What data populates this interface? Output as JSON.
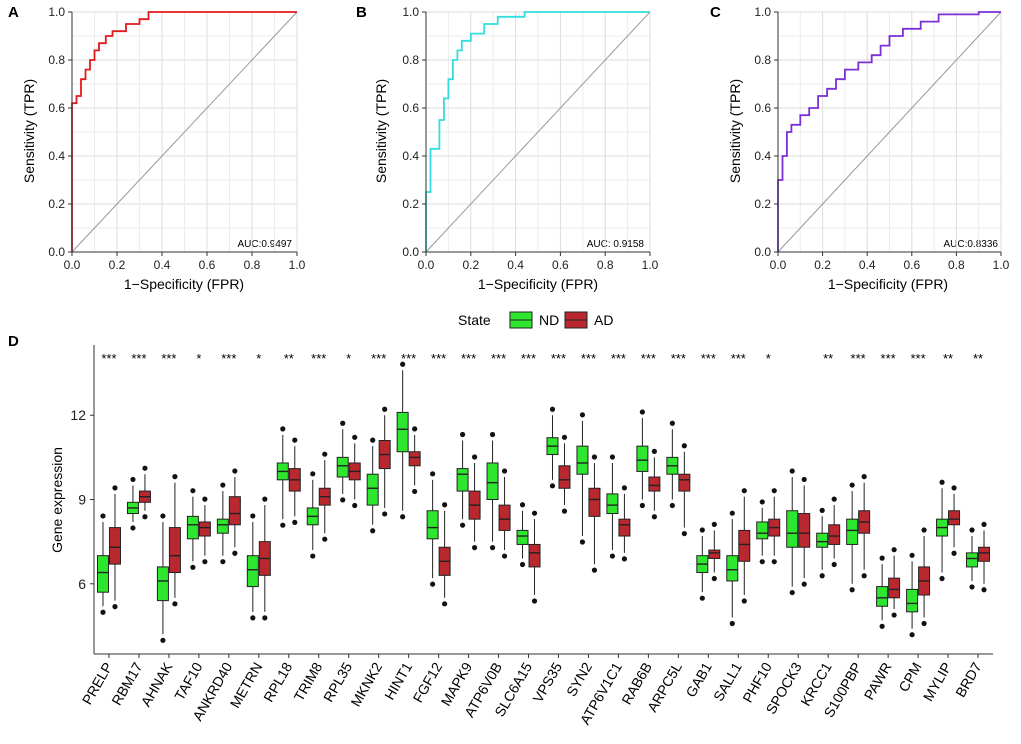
{
  "chart_data": [
    {
      "panel": "A",
      "type": "line",
      "subtype": "roc",
      "xlabel": "1−Specificity (FPR)",
      "ylabel": "Sensitivity (TPR)",
      "xlim": [
        0,
        1
      ],
      "ylim": [
        0,
        1
      ],
      "xticks": [
        "0.0",
        "0.2",
        "0.4",
        "0.6",
        "0.8",
        "1.0"
      ],
      "yticks": [
        "0.0",
        "0.2",
        "0.4",
        "0.6",
        "0.8",
        "1.0"
      ],
      "auc_label": "AUC:0.9497",
      "color": "#e31a1c",
      "points": [
        [
          0,
          0
        ],
        [
          0,
          0.62
        ],
        [
          0.02,
          0.62
        ],
        [
          0.02,
          0.65
        ],
        [
          0.04,
          0.65
        ],
        [
          0.04,
          0.72
        ],
        [
          0.06,
          0.72
        ],
        [
          0.06,
          0.76
        ],
        [
          0.08,
          0.76
        ],
        [
          0.08,
          0.8
        ],
        [
          0.1,
          0.8
        ],
        [
          0.1,
          0.84
        ],
        [
          0.12,
          0.84
        ],
        [
          0.12,
          0.87
        ],
        [
          0.15,
          0.87
        ],
        [
          0.15,
          0.9
        ],
        [
          0.18,
          0.9
        ],
        [
          0.18,
          0.92
        ],
        [
          0.24,
          0.92
        ],
        [
          0.24,
          0.95
        ],
        [
          0.3,
          0.95
        ],
        [
          0.3,
          0.97
        ],
        [
          0.34,
          0.97
        ],
        [
          0.34,
          1.0
        ],
        [
          1.0,
          1.0
        ]
      ]
    },
    {
      "panel": "B",
      "type": "line",
      "subtype": "roc",
      "xlabel": "1−Specificity (FPR)",
      "ylabel": "Sensitivity (TPR)",
      "xlim": [
        0,
        1
      ],
      "ylim": [
        0,
        1
      ],
      "xticks": [
        "0.0",
        "0.2",
        "0.4",
        "0.6",
        "0.8",
        "1.0"
      ],
      "yticks": [
        "0.0",
        "0.2",
        "0.4",
        "0.6",
        "0.8",
        "1.0"
      ],
      "auc_label": "AUC: 0.9158",
      "color": "#33dddd",
      "points": [
        [
          0,
          0
        ],
        [
          0,
          0.25
        ],
        [
          0.02,
          0.25
        ],
        [
          0.02,
          0.43
        ],
        [
          0.06,
          0.43
        ],
        [
          0.06,
          0.55
        ],
        [
          0.08,
          0.55
        ],
        [
          0.08,
          0.64
        ],
        [
          0.1,
          0.64
        ],
        [
          0.1,
          0.72
        ],
        [
          0.12,
          0.72
        ],
        [
          0.12,
          0.8
        ],
        [
          0.14,
          0.8
        ],
        [
          0.14,
          0.84
        ],
        [
          0.16,
          0.84
        ],
        [
          0.16,
          0.88
        ],
        [
          0.2,
          0.88
        ],
        [
          0.2,
          0.91
        ],
        [
          0.26,
          0.91
        ],
        [
          0.26,
          0.95
        ],
        [
          0.32,
          0.95
        ],
        [
          0.32,
          0.98
        ],
        [
          0.44,
          0.98
        ],
        [
          0.44,
          1.0
        ],
        [
          1.0,
          1.0
        ]
      ]
    },
    {
      "panel": "C",
      "type": "line",
      "subtype": "roc",
      "xlabel": "1−Specificity (FPR)",
      "ylabel": "Sensitivity (TPR)",
      "xlim": [
        0,
        1
      ],
      "ylim": [
        0,
        1
      ],
      "xticks": [
        "0.0",
        "0.2",
        "0.4",
        "0.6",
        "0.8",
        "1.0"
      ],
      "yticks": [
        "0.0",
        "0.2",
        "0.4",
        "0.6",
        "0.8",
        "1.0"
      ],
      "auc_label": "AUC:0.8336",
      "color": "#7b2fd6",
      "points": [
        [
          0,
          0
        ],
        [
          0,
          0.3
        ],
        [
          0.02,
          0.3
        ],
        [
          0.02,
          0.4
        ],
        [
          0.04,
          0.4
        ],
        [
          0.04,
          0.5
        ],
        [
          0.06,
          0.5
        ],
        [
          0.06,
          0.53
        ],
        [
          0.1,
          0.53
        ],
        [
          0.1,
          0.57
        ],
        [
          0.14,
          0.57
        ],
        [
          0.14,
          0.6
        ],
        [
          0.18,
          0.6
        ],
        [
          0.18,
          0.65
        ],
        [
          0.22,
          0.65
        ],
        [
          0.22,
          0.68
        ],
        [
          0.26,
          0.68
        ],
        [
          0.26,
          0.72
        ],
        [
          0.3,
          0.72
        ],
        [
          0.3,
          0.76
        ],
        [
          0.36,
          0.76
        ],
        [
          0.36,
          0.79
        ],
        [
          0.42,
          0.79
        ],
        [
          0.42,
          0.82
        ],
        [
          0.46,
          0.82
        ],
        [
          0.46,
          0.86
        ],
        [
          0.5,
          0.86
        ],
        [
          0.5,
          0.9
        ],
        [
          0.56,
          0.9
        ],
        [
          0.56,
          0.93
        ],
        [
          0.64,
          0.93
        ],
        [
          0.64,
          0.96
        ],
        [
          0.72,
          0.96
        ],
        [
          0.72,
          0.99
        ],
        [
          0.9,
          0.99
        ],
        [
          0.9,
          1.0
        ],
        [
          1.0,
          1.0
        ]
      ]
    },
    {
      "panel": "D",
      "type": "box",
      "ylabel": "Gene expression",
      "ylim": [
        3.5,
        14.5
      ],
      "yticks": [
        6,
        9,
        12
      ],
      "legend_title": "State",
      "legend_position": "top",
      "series": [
        {
          "name": "ND",
          "color": "#2ee62e"
        },
        {
          "name": "AD",
          "color": "#b8282e"
        }
      ],
      "genes": [
        {
          "name": "PRELP",
          "sig": "***",
          "nd": [
            5.2,
            5.7,
            6.4,
            7.0,
            8.2
          ],
          "ad": [
            5.4,
            6.7,
            7.3,
            8.0,
            9.2
          ]
        },
        {
          "name": "RBM17",
          "sig": "***",
          "nd": [
            8.2,
            8.5,
            8.7,
            8.9,
            9.5
          ],
          "ad": [
            8.6,
            8.9,
            9.1,
            9.3,
            9.9
          ]
        },
        {
          "name": "AHNAK",
          "sig": "***",
          "nd": [
            4.2,
            5.4,
            6.1,
            6.6,
            8.2
          ],
          "ad": [
            5.5,
            6.4,
            7.0,
            8.0,
            9.6
          ]
        },
        {
          "name": "TAF10",
          "sig": "*",
          "nd": [
            6.8,
            7.6,
            8.1,
            8.4,
            9.1
          ],
          "ad": [
            7.0,
            7.7,
            8.0,
            8.2,
            8.8
          ]
        },
        {
          "name": "ANKRD40",
          "sig": "***",
          "nd": [
            7.0,
            7.8,
            8.1,
            8.3,
            9.3
          ],
          "ad": [
            7.3,
            8.1,
            8.5,
            9.1,
            9.8
          ]
        },
        {
          "name": "METRN",
          "sig": "*",
          "nd": [
            5.0,
            5.9,
            6.5,
            7.0,
            8.2
          ],
          "ad": [
            5.0,
            6.3,
            6.9,
            7.5,
            8.8
          ]
        },
        {
          "name": "RPL18",
          "sig": "**",
          "nd": [
            8.3,
            9.7,
            10.0,
            10.3,
            11.3
          ],
          "ad": [
            8.4,
            9.3,
            9.7,
            10.1,
            10.9
          ]
        },
        {
          "name": "TRIM8",
          "sig": "***",
          "nd": [
            7.2,
            8.1,
            8.4,
            8.7,
            9.7
          ],
          "ad": [
            7.8,
            8.8,
            9.1,
            9.4,
            10.4
          ]
        },
        {
          "name": "RPL35",
          "sig": "*",
          "nd": [
            9.2,
            9.8,
            10.2,
            10.5,
            11.5
          ],
          "ad": [
            9.0,
            9.7,
            10.0,
            10.3,
            11.0
          ]
        },
        {
          "name": "MKNK2",
          "sig": "***",
          "nd": [
            8.1,
            8.8,
            9.4,
            9.9,
            10.9
          ],
          "ad": [
            8.7,
            10.1,
            10.6,
            11.1,
            12.0
          ]
        },
        {
          "name": "HINT1",
          "sig": "***",
          "nd": [
            8.6,
            10.7,
            11.5,
            12.1,
            13.6
          ],
          "ad": [
            9.5,
            10.2,
            10.5,
            10.7,
            11.3
          ]
        },
        {
          "name": "FGF12",
          "sig": "***",
          "nd": [
            6.2,
            7.6,
            8.0,
            8.6,
            9.7
          ],
          "ad": [
            5.5,
            6.3,
            6.8,
            7.3,
            8.6
          ]
        },
        {
          "name": "MAPK9",
          "sig": "***",
          "nd": [
            8.3,
            9.3,
            9.9,
            10.1,
            11.1
          ],
          "ad": [
            7.5,
            8.3,
            8.8,
            9.3,
            10.3
          ]
        },
        {
          "name": "ATP6V0B",
          "sig": "***",
          "nd": [
            7.5,
            9.0,
            9.6,
            10.3,
            11.1
          ],
          "ad": [
            7.2,
            7.9,
            8.3,
            8.8,
            9.8
          ]
        },
        {
          "name": "SLC6A15",
          "sig": "***",
          "nd": [
            6.9,
            7.4,
            7.7,
            7.9,
            8.6
          ],
          "ad": [
            5.6,
            6.6,
            7.1,
            7.4,
            8.3
          ]
        },
        {
          "name": "VPS35",
          "sig": "***",
          "nd": [
            9.7,
            10.6,
            10.9,
            11.2,
            12.0
          ],
          "ad": [
            8.8,
            9.4,
            9.7,
            10.2,
            11.0
          ]
        },
        {
          "name": "SYN2",
          "sig": "***",
          "nd": [
            7.7,
            9.9,
            10.3,
            10.9,
            11.8
          ],
          "ad": [
            6.7,
            8.4,
            9.0,
            9.4,
            10.3
          ]
        },
        {
          "name": "ATP6V1C1",
          "sig": "***",
          "nd": [
            7.2,
            8.5,
            8.8,
            9.2,
            10.3
          ],
          "ad": [
            7.1,
            7.7,
            8.1,
            8.3,
            9.2
          ]
        },
        {
          "name": "RAB6B",
          "sig": "***",
          "nd": [
            9.0,
            10.0,
            10.4,
            10.9,
            11.9
          ],
          "ad": [
            8.6,
            9.3,
            9.5,
            9.8,
            10.5
          ]
        },
        {
          "name": "ARPC5L",
          "sig": "***",
          "nd": [
            9.0,
            9.9,
            10.2,
            10.5,
            11.5
          ],
          "ad": [
            8.0,
            9.3,
            9.7,
            9.9,
            10.7
          ]
        },
        {
          "name": "GAB1",
          "sig": "***",
          "nd": [
            5.7,
            6.4,
            6.7,
            7.0,
            7.7
          ],
          "ad": [
            6.4,
            6.9,
            7.1,
            7.2,
            7.9
          ]
        },
        {
          "name": "SALL1",
          "sig": "***",
          "nd": [
            4.8,
            6.1,
            6.5,
            7.0,
            8.3
          ],
          "ad": [
            5.6,
            6.8,
            7.4,
            7.9,
            9.1
          ]
        },
        {
          "name": "PHF10",
          "sig": "*",
          "nd": [
            7.0,
            7.6,
            7.8,
            8.2,
            8.7
          ],
          "ad": [
            7.0,
            7.7,
            8.0,
            8.3,
            9.1
          ]
        },
        {
          "name": "SPOCK3",
          "sig": "",
          "nd": [
            5.9,
            7.3,
            7.8,
            8.6,
            9.8
          ],
          "ad": [
            6.2,
            7.3,
            7.8,
            8.5,
            9.5
          ]
        },
        {
          "name": "KRCC1",
          "sig": "**",
          "nd": [
            6.5,
            7.3,
            7.5,
            7.8,
            8.4
          ],
          "ad": [
            6.9,
            7.4,
            7.7,
            8.1,
            8.8
          ]
        },
        {
          "name": "S100PBP",
          "sig": "***",
          "nd": [
            6.0,
            7.4,
            7.9,
            8.3,
            9.3
          ],
          "ad": [
            6.5,
            7.8,
            8.2,
            8.6,
            9.6
          ]
        },
        {
          "name": "PAWR",
          "sig": "***",
          "nd": [
            4.7,
            5.2,
            5.5,
            5.9,
            6.7
          ],
          "ad": [
            5.1,
            5.5,
            5.8,
            6.2,
            7.0
          ]
        },
        {
          "name": "CPM",
          "sig": "***",
          "nd": [
            4.4,
            5.0,
            5.3,
            5.8,
            6.8
          ],
          "ad": [
            4.8,
            5.6,
            6.1,
            6.6,
            7.7
          ]
        },
        {
          "name": "MYLIP",
          "sig": "**",
          "nd": [
            6.4,
            7.7,
            8.0,
            8.3,
            9.4
          ],
          "ad": [
            7.3,
            8.1,
            8.3,
            8.6,
            9.2
          ]
        },
        {
          "name": "BRD7",
          "sig": "**",
          "nd": [
            6.1,
            6.6,
            6.9,
            7.1,
            7.7
          ],
          "ad": [
            6.0,
            6.8,
            7.1,
            7.3,
            7.9
          ]
        }
      ]
    }
  ]
}
